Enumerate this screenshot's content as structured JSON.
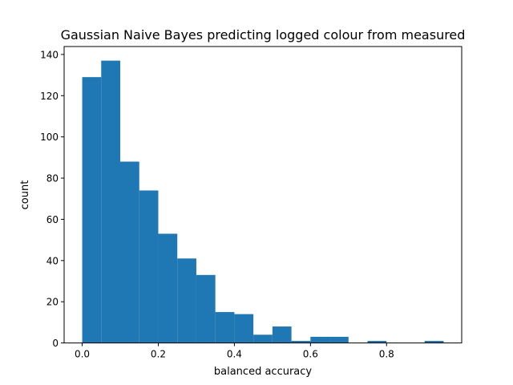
{
  "colors": {
    "bar": "#1f77b4",
    "axis": "#000000",
    "background": "#ffffff"
  },
  "chart_data": {
    "type": "bar",
    "title": "Gaussian Naive Bayes predicting logged colour from measured",
    "xlabel": "balanced accuracy",
    "ylabel": "count",
    "bin_edges": [
      0.0,
      0.05,
      0.1,
      0.15,
      0.2,
      0.25,
      0.3,
      0.35,
      0.4,
      0.45,
      0.5,
      0.55,
      0.6,
      0.65,
      0.7,
      0.75,
      0.8,
      0.85,
      0.9,
      0.95
    ],
    "values": [
      129,
      137,
      88,
      74,
      53,
      41,
      33,
      15,
      14,
      4,
      8,
      1,
      3,
      3,
      0,
      1,
      0,
      0,
      1
    ],
    "xlim": [
      -0.0475,
      0.9975
    ],
    "ylim": [
      0,
      143.85
    ],
    "xticks": [
      0.0,
      0.2,
      0.4,
      0.6,
      0.8
    ],
    "xtick_labels": [
      "0.0",
      "0.2",
      "0.4",
      "0.6",
      "0.8"
    ],
    "yticks": [
      0,
      20,
      40,
      60,
      80,
      100,
      120,
      140
    ],
    "ytick_labels": [
      "0",
      "20",
      "40",
      "60",
      "80",
      "100",
      "120",
      "140"
    ],
    "grid": false,
    "legend": "none"
  }
}
